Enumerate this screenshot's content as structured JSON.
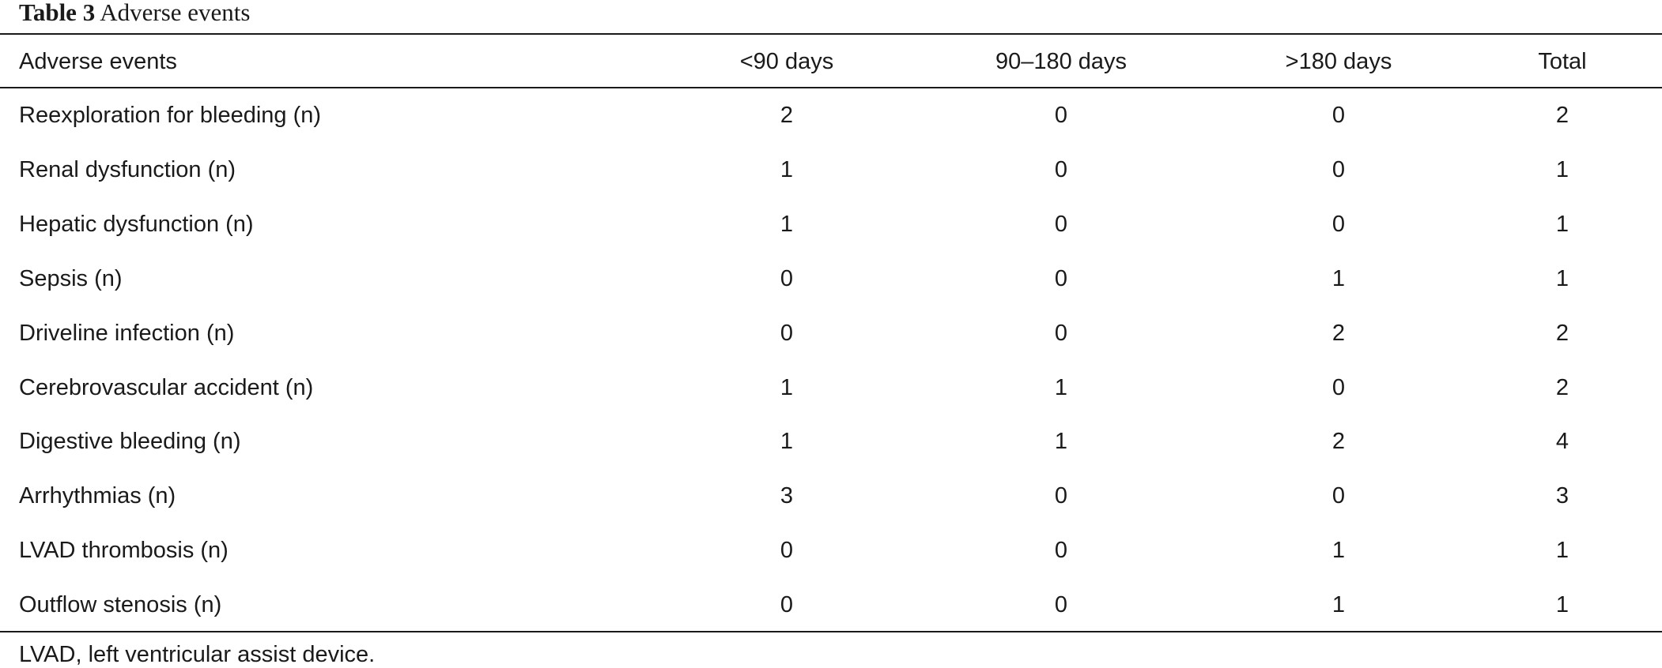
{
  "caption": {
    "label": "Table 3",
    "title": "Adverse events"
  },
  "table": {
    "header": [
      "Adverse events",
      "<90 days",
      "90–180 days",
      ">180 days",
      "Total"
    ],
    "rows": [
      [
        "Reexploration for bleeding (n)",
        2,
        0,
        0,
        2
      ],
      [
        "Renal dysfunction (n)",
        1,
        0,
        0,
        1
      ],
      [
        "Hepatic dysfunction (n)",
        1,
        0,
        0,
        1
      ],
      [
        "Sepsis (n)",
        0,
        0,
        1,
        1
      ],
      [
        "Driveline infection (n)",
        0,
        0,
        2,
        2
      ],
      [
        "Cerebrovascular accident (n)",
        1,
        1,
        0,
        2
      ],
      [
        "Digestive bleeding (n)",
        1,
        1,
        2,
        4
      ],
      [
        "Arrhythmias (n)",
        3,
        0,
        0,
        3
      ],
      [
        "LVAD thrombosis (n)",
        0,
        0,
        1,
        1
      ],
      [
        "Outflow stenosis (n)",
        0,
        0,
        1,
        1
      ]
    ]
  },
  "footnote": "LVAD, left ventricular assist device."
}
